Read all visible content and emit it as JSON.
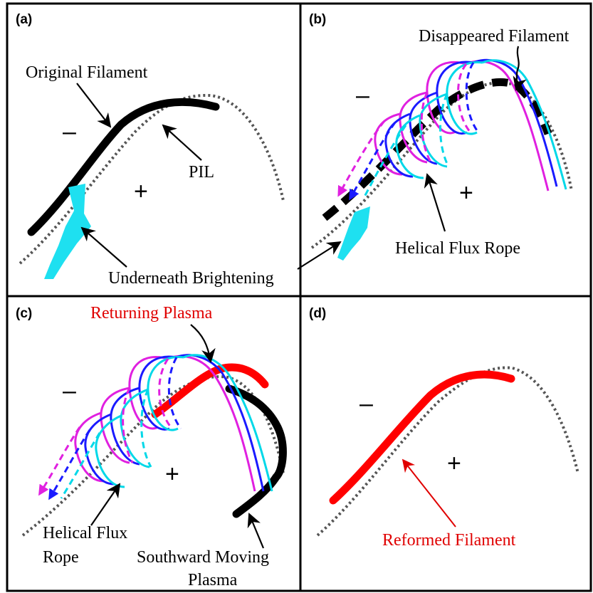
{
  "panels": {
    "a": {
      "tag": "(a)",
      "labels": {
        "original_filament": "Original Filament",
        "pil": "PIL",
        "underneath_brightening": "Underneath Brightening"
      },
      "minus": "–",
      "plus": "+"
    },
    "b": {
      "tag": "(b)",
      "labels": {
        "disappeared_filament": "Disappeared Filament",
        "helical_flux_rope": "Helical Flux Rope"
      },
      "minus": "–",
      "plus": "+"
    },
    "c": {
      "tag": "(c)",
      "labels": {
        "returning_plasma": "Returning Plasma",
        "helical_flux_line1": "Helical Flux",
        "helical_flux_line2": "Rope",
        "southward_line1": "Southward Moving",
        "southward_line2": "Plasma"
      },
      "minus": "–",
      "plus": "+"
    },
    "d": {
      "tag": "(d)",
      "labels": {
        "reformed_filament": "Reformed Filament"
      },
      "minus": "–",
      "plus": "+"
    }
  },
  "colors": {
    "filament": "#000000",
    "pil": "#555555",
    "brightening": "#1ee0f0",
    "flux_magenta": "#e020e0",
    "flux_purple": "#8a2be2",
    "flux_blue": "#1a1aff",
    "flux_cyan": "#00d8e8",
    "red_plasma": "#ff0000"
  }
}
